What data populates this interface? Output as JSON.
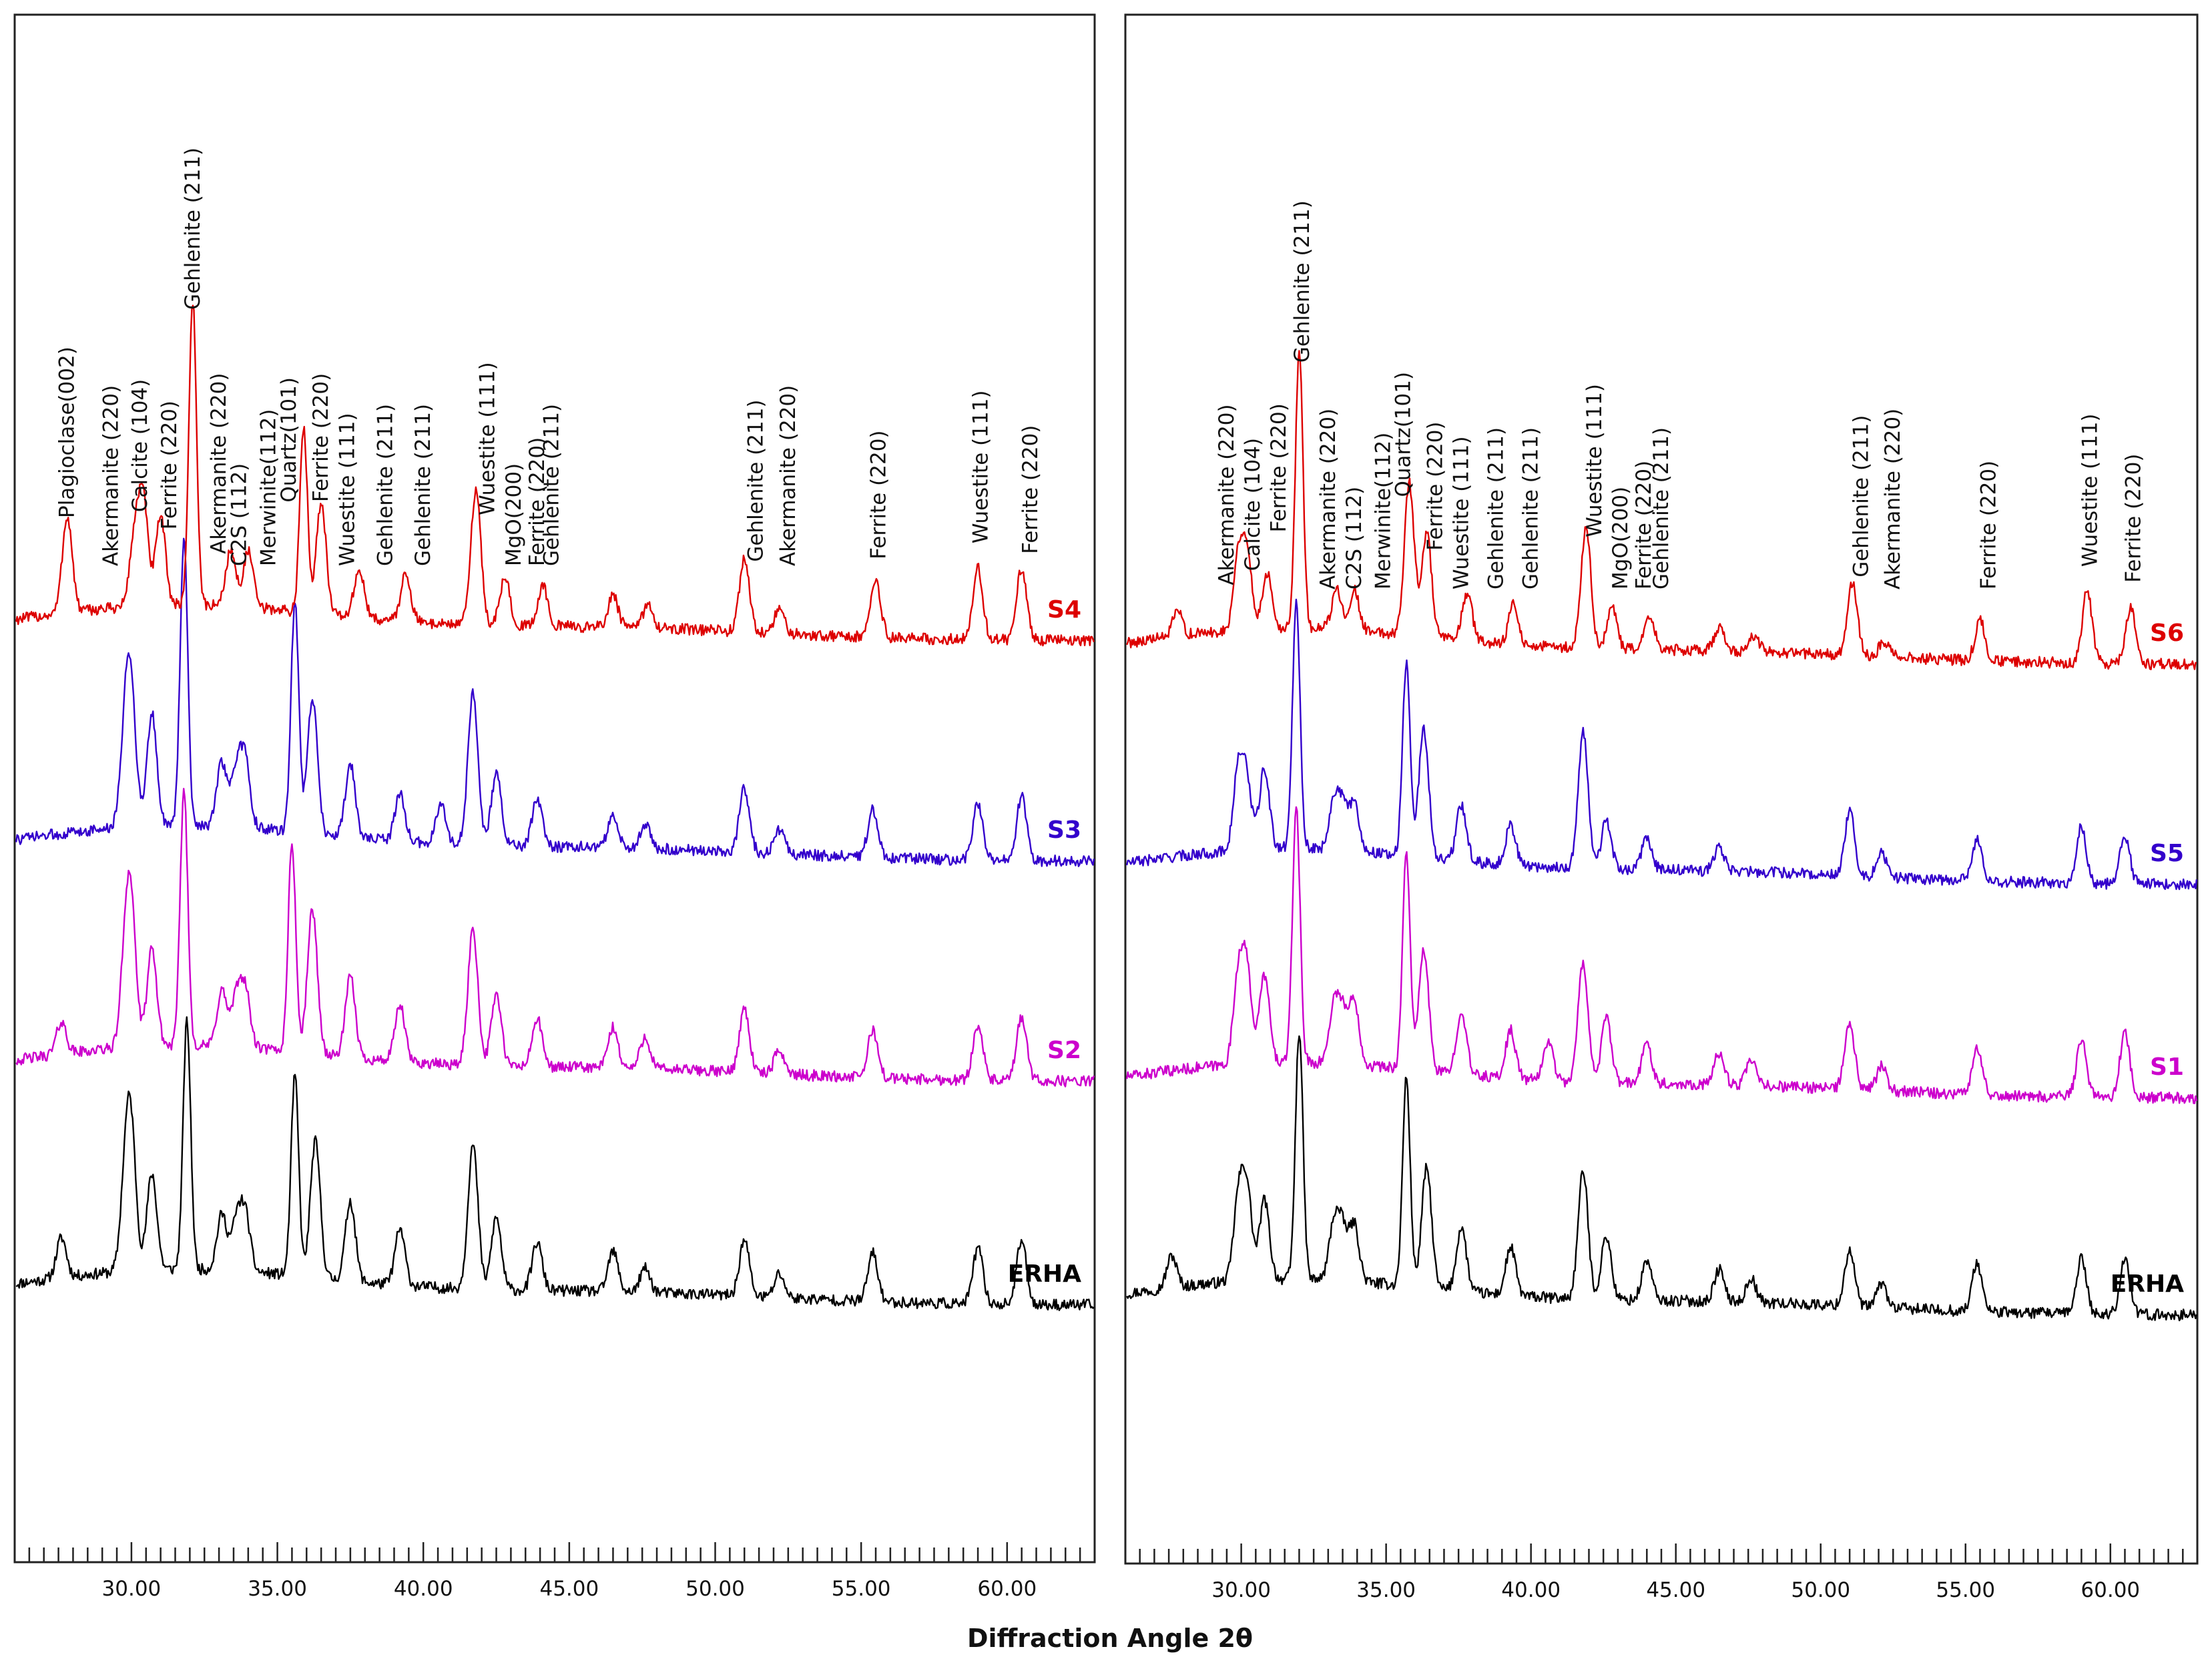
{
  "chart_data": [
    {
      "type": "line",
      "panel": "left",
      "xlabel": "Diffraction Angle 2θ",
      "xlim": [
        26.0,
        63.0
      ],
      "x_ticks": [
        "30.00",
        "35.00",
        "40.00",
        "45.00",
        "50.00",
        "55.00",
        "60.00"
      ],
      "x_tick_values": [
        30,
        35,
        40,
        45,
        50,
        55,
        60
      ],
      "grid": false,
      "series": [
        {
          "name": "ERHA",
          "color": "#000000",
          "peaks": [
            [
              27.6,
              0.25
            ],
            [
              29.8,
              0.55
            ],
            [
              30.0,
              0.75
            ],
            [
              30.7,
              0.6
            ],
            [
              31.9,
              1.55
            ],
            [
              33.1,
              0.35
            ],
            [
              33.6,
              0.3
            ],
            [
              33.9,
              0.35
            ],
            [
              35.6,
              1.25
            ],
            [
              36.3,
              0.85
            ],
            [
              37.5,
              0.5
            ],
            [
              39.2,
              0.35
            ],
            [
              41.7,
              0.9
            ],
            [
              42.5,
              0.45
            ],
            [
              43.9,
              0.3
            ],
            [
              46.5,
              0.25
            ],
            [
              47.6,
              0.15
            ],
            [
              51.0,
              0.35
            ],
            [
              52.2,
              0.15
            ],
            [
              55.4,
              0.3
            ],
            [
              59.0,
              0.35
            ],
            [
              60.5,
              0.4
            ]
          ]
        },
        {
          "name": "S2",
          "color": "#cc00cc",
          "peaks": [
            [
              27.6,
              0.2
            ],
            [
              29.8,
              0.55
            ],
            [
              30.0,
              0.75
            ],
            [
              30.7,
              0.6
            ],
            [
              31.8,
              1.6
            ],
            [
              33.1,
              0.35
            ],
            [
              33.6,
              0.3
            ],
            [
              33.9,
              0.35
            ],
            [
              35.5,
              1.3
            ],
            [
              36.2,
              0.9
            ],
            [
              37.5,
              0.5
            ],
            [
              39.2,
              0.35
            ],
            [
              41.7,
              0.85
            ],
            [
              42.5,
              0.45
            ],
            [
              43.9,
              0.3
            ],
            [
              46.5,
              0.25
            ],
            [
              47.6,
              0.2
            ],
            [
              51.0,
              0.4
            ],
            [
              52.2,
              0.15
            ],
            [
              55.4,
              0.3
            ],
            [
              59.0,
              0.35
            ],
            [
              60.5,
              0.4
            ]
          ]
        },
        {
          "name": "S3",
          "color": "#3300cc",
          "peaks": [
            [
              29.8,
              0.6
            ],
            [
              30.0,
              0.7
            ],
            [
              30.7,
              0.7
            ],
            [
              31.8,
              1.8
            ],
            [
              33.1,
              0.4
            ],
            [
              33.6,
              0.35
            ],
            [
              33.9,
              0.4
            ],
            [
              35.6,
              1.45
            ],
            [
              36.2,
              0.85
            ],
            [
              37.5,
              0.45
            ],
            [
              39.2,
              0.3
            ],
            [
              40.6,
              0.25
            ],
            [
              41.7,
              0.95
            ],
            [
              42.5,
              0.45
            ],
            [
              43.9,
              0.3
            ],
            [
              46.5,
              0.2
            ],
            [
              47.6,
              0.15
            ],
            [
              51.0,
              0.4
            ],
            [
              52.2,
              0.15
            ],
            [
              55.4,
              0.3
            ],
            [
              59.0,
              0.35
            ],
            [
              60.5,
              0.4
            ]
          ]
        },
        {
          "name": "S4",
          "color": "#dd0000",
          "peaks": [
            [
              27.8,
              0.6
            ],
            [
              30.1,
              0.4
            ],
            [
              30.4,
              0.65
            ],
            [
              31.0,
              0.55
            ],
            [
              32.1,
              1.9
            ],
            [
              33.4,
              0.35
            ],
            [
              34.0,
              0.35
            ],
            [
              35.9,
              1.15
            ],
            [
              36.5,
              0.7
            ],
            [
              37.8,
              0.3
            ],
            [
              39.4,
              0.3
            ],
            [
              41.8,
              0.85
            ],
            [
              42.8,
              0.3
            ],
            [
              44.1,
              0.25
            ],
            [
              46.5,
              0.2
            ],
            [
              47.7,
              0.15
            ],
            [
              51.0,
              0.45
            ],
            [
              52.2,
              0.15
            ],
            [
              55.5,
              0.35
            ],
            [
              59.0,
              0.45
            ],
            [
              60.5,
              0.45
            ]
          ]
        }
      ],
      "series_labels": [
        "ERHA",
        "S2",
        "S3",
        "S4"
      ],
      "annotations": [
        {
          "text": "Plagioclase(002)",
          "x": 27.8
        },
        {
          "text": "Akermanite (220)",
          "x": 29.3
        },
        {
          "text": "Calcite (104)",
          "x": 30.3
        },
        {
          "text": "Ferrite (220)",
          "x": 31.3
        },
        {
          "text": "Gehlenite (211)",
          "x": 32.1
        },
        {
          "text": "Akermanite (220)",
          "x": 33.0
        },
        {
          "text": "C2S (112)",
          "x": 33.7
        },
        {
          "text": "Merwinite(112)",
          "x": 34.7
        },
        {
          "text": "Quartz(101)",
          "x": 35.4
        },
        {
          "text": "Ferrite (220)",
          "x": 36.5
        },
        {
          "text": "Wuestite (111)",
          "x": 37.4
        },
        {
          "text": "Gehlenite (211)",
          "x": 38.7
        },
        {
          "text": "Gehlenite (211)",
          "x": 40.0
        },
        {
          "text": "Wuestite (111)",
          "x": 42.2
        },
        {
          "text": "MgO(200)",
          "x": 43.1
        },
        {
          "text": "Ferrite (220)",
          "x": 43.9
        },
        {
          "text": "Gehlenite (211)",
          "x": 44.4
        },
        {
          "text": "Gehlenite (211)",
          "x": 51.4
        },
        {
          "text": "Akermanite (220)",
          "x": 52.5
        },
        {
          "text": "Ferrite (220)",
          "x": 55.6
        },
        {
          "text": "Wuestite (111)",
          "x": 59.1
        },
        {
          "text": "Ferrite (220)",
          "x": 60.8
        }
      ]
    },
    {
      "type": "line",
      "panel": "right",
      "xlabel": "Diffraction Angle 2θ",
      "xlim": [
        26.0,
        63.0
      ],
      "x_ticks": [
        "30.00",
        "35.00",
        "40.00",
        "45.00",
        "50.00",
        "55.00",
        "60.00"
      ],
      "x_tick_values": [
        30,
        35,
        40,
        45,
        50,
        55,
        60
      ],
      "grid": false,
      "series": [
        {
          "name": "ERHA",
          "color": "#000000",
          "peaks": [
            [
              27.6,
              0.2
            ],
            [
              29.9,
              0.5
            ],
            [
              30.2,
              0.55
            ],
            [
              30.8,
              0.5
            ],
            [
              32.0,
              1.55
            ],
            [
              33.2,
              0.35
            ],
            [
              33.5,
              0.3
            ],
            [
              33.9,
              0.35
            ],
            [
              35.7,
              1.3
            ],
            [
              36.4,
              0.75
            ],
            [
              37.6,
              0.4
            ],
            [
              39.3,
              0.3
            ],
            [
              41.8,
              0.8
            ],
            [
              42.6,
              0.4
            ],
            [
              44.0,
              0.25
            ],
            [
              46.5,
              0.2
            ],
            [
              47.6,
              0.15
            ],
            [
              51.0,
              0.35
            ],
            [
              52.1,
              0.15
            ],
            [
              55.4,
              0.3
            ],
            [
              59.0,
              0.35
            ],
            [
              60.5,
              0.35
            ]
          ]
        },
        {
          "name": "S1",
          "color": "#cc00cc",
          "peaks": [
            [
              29.9,
              0.55
            ],
            [
              30.2,
              0.55
            ],
            [
              30.8,
              0.55
            ],
            [
              31.9,
              1.6
            ],
            [
              33.2,
              0.35
            ],
            [
              33.5,
              0.3
            ],
            [
              33.9,
              0.4
            ],
            [
              35.7,
              1.35
            ],
            [
              36.3,
              0.75
            ],
            [
              37.6,
              0.4
            ],
            [
              39.3,
              0.3
            ],
            [
              40.6,
              0.25
            ],
            [
              41.8,
              0.75
            ],
            [
              42.6,
              0.4
            ],
            [
              44.0,
              0.25
            ],
            [
              46.5,
              0.2
            ],
            [
              47.6,
              0.15
            ],
            [
              51.0,
              0.4
            ],
            [
              52.1,
              0.15
            ],
            [
              55.4,
              0.3
            ],
            [
              59.0,
              0.35
            ],
            [
              60.5,
              0.4
            ]
          ]
        },
        {
          "name": "S5",
          "color": "#3300cc",
          "peaks": [
            [
              29.9,
              0.5
            ],
            [
              30.2,
              0.4
            ],
            [
              30.8,
              0.5
            ],
            [
              31.9,
              1.55
            ],
            [
              33.2,
              0.3
            ],
            [
              33.5,
              0.25
            ],
            [
              33.9,
              0.3
            ],
            [
              35.7,
              1.2
            ],
            [
              36.3,
              0.8
            ],
            [
              37.6,
              0.35
            ],
            [
              39.3,
              0.25
            ],
            [
              41.8,
              0.85
            ],
            [
              42.6,
              0.3
            ],
            [
              44.0,
              0.2
            ],
            [
              46.5,
              0.15
            ],
            [
              51.0,
              0.4
            ],
            [
              52.1,
              0.15
            ],
            [
              55.4,
              0.25
            ],
            [
              59.0,
              0.35
            ],
            [
              60.5,
              0.3
            ]
          ]
        },
        {
          "name": "S6",
          "color": "#dd0000",
          "peaks": [
            [
              27.8,
              0.15
            ],
            [
              29.9,
              0.45
            ],
            [
              30.2,
              0.45
            ],
            [
              30.9,
              0.35
            ],
            [
              32.0,
              1.75
            ],
            [
              33.3,
              0.25
            ],
            [
              33.9,
              0.25
            ],
            [
              35.8,
              0.95
            ],
            [
              36.4,
              0.65
            ],
            [
              37.8,
              0.3
            ],
            [
              39.4,
              0.25
            ],
            [
              41.9,
              0.75
            ],
            [
              42.8,
              0.25
            ],
            [
              44.1,
              0.2
            ],
            [
              46.5,
              0.15
            ],
            [
              47.7,
              0.1
            ],
            [
              51.1,
              0.45
            ],
            [
              52.2,
              0.1
            ],
            [
              55.5,
              0.25
            ],
            [
              59.2,
              0.45
            ],
            [
              60.7,
              0.35
            ]
          ]
        }
      ],
      "series_labels": [
        "ERHA",
        "S1",
        "S5",
        "S6"
      ],
      "annotations": [
        {
          "text": "Akermanite (220)",
          "x": 29.5
        },
        {
          "text": "Calcite (104)",
          "x": 30.4
        },
        {
          "text": "Ferrite (220)",
          "x": 31.3
        },
        {
          "text": "Gehlenite (211)",
          "x": 32.1
        },
        {
          "text": "Akermanite (220)",
          "x": 33.0
        },
        {
          "text": "C2S (112)",
          "x": 33.9
        },
        {
          "text": "Merwinite(112)",
          "x": 34.9
        },
        {
          "text": "Quartz(101)",
          "x": 35.6
        },
        {
          "text": "Ferrite (220)",
          "x": 36.7
        },
        {
          "text": "Wuestite (111)",
          "x": 37.6
        },
        {
          "text": "Gehlenite (211)",
          "x": 38.8
        },
        {
          "text": "Gehlenite (211)",
          "x": 40.0
        },
        {
          "text": "Wuestite (111)",
          "x": 42.2
        },
        {
          "text": "MgO(200)",
          "x": 43.1
        },
        {
          "text": "Ferrite (220)",
          "x": 43.9
        },
        {
          "text": "Gehlenite (211)",
          "x": 44.5
        },
        {
          "text": "Gehlenite (211)",
          "x": 51.4
        },
        {
          "text": "Akermanite (220)",
          "x": 52.5
        },
        {
          "text": "Ferrite (220)",
          "x": 55.8
        },
        {
          "text": "Wuestite (111)",
          "x": 59.3
        },
        {
          "text": "Ferrite (220)",
          "x": 60.8
        }
      ]
    }
  ]
}
